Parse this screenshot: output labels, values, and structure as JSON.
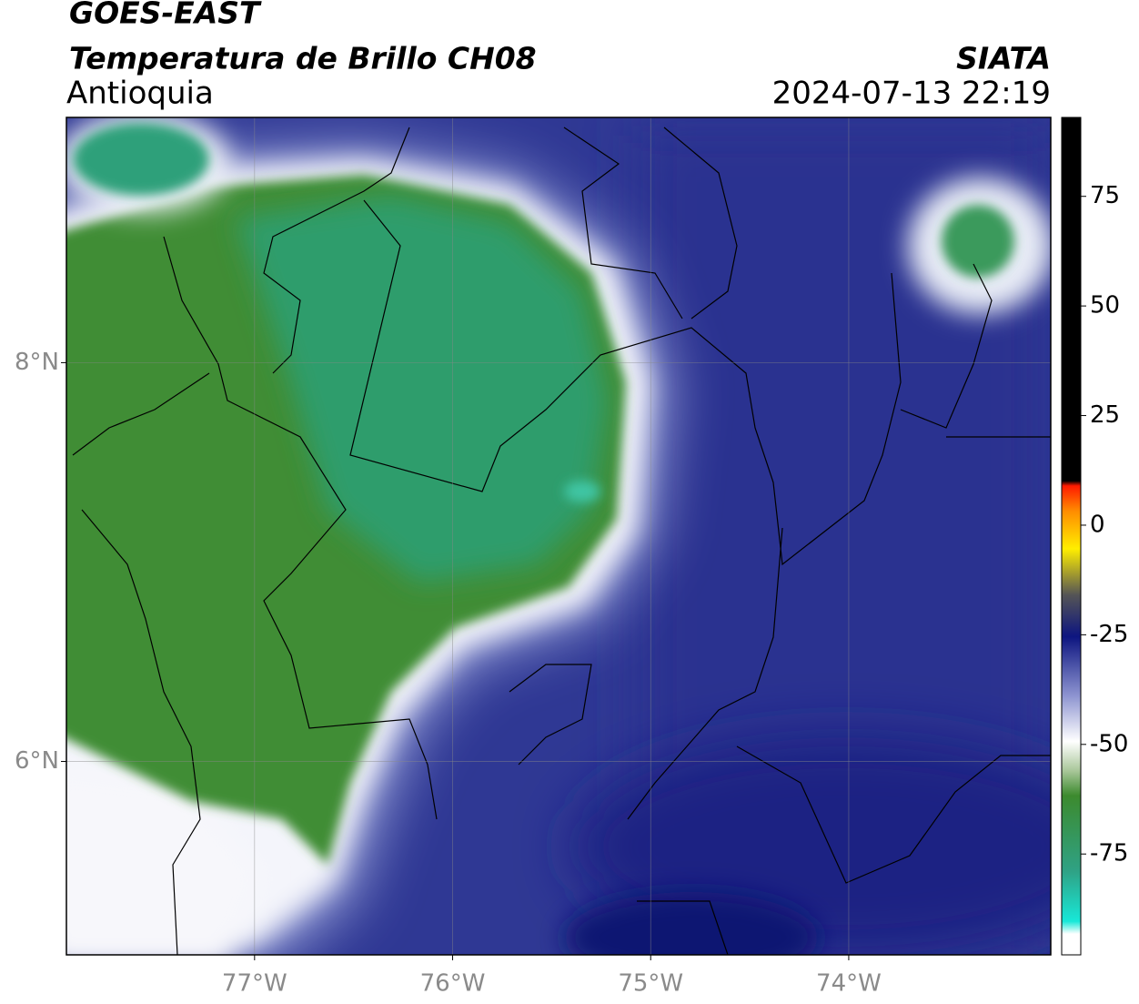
{
  "map": {
    "title": "GOES-EAST",
    "subtitle": "Temperatura de Brillo CH08",
    "region": "Antioquia",
    "source": "SIATA",
    "timestamp": "2024-07-13 22:19",
    "xlim": [
      -77.95,
      -72.98
    ],
    "ylim": [
      5.03,
      9.23
    ],
    "xticks": [
      {
        "value": -77,
        "label": "77°W"
      },
      {
        "value": -76,
        "label": "76°W"
      },
      {
        "value": -75,
        "label": "75°W"
      },
      {
        "value": -74,
        "label": "74°W"
      }
    ],
    "yticks": [
      {
        "value": 8,
        "label": "8°N"
      },
      {
        "value": 6,
        "label": "6°N"
      }
    ],
    "grid": true
  },
  "colorbar": {
    "lim": [
      -98,
      93
    ],
    "ticks": [
      75,
      50,
      25,
      0,
      -25,
      -50,
      -75
    ]
  }
}
